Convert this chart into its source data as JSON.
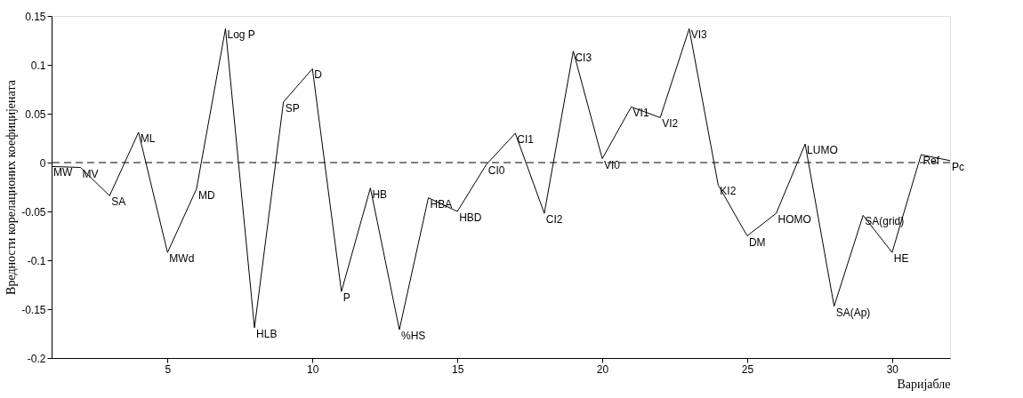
{
  "chart_data": {
    "type": "line",
    "xlabel": "Варијабле",
    "ylabel": "Вредности корелационих коефицијената",
    "x": [
      1,
      2,
      3,
      4,
      5,
      6,
      7,
      8,
      9,
      10,
      11,
      12,
      13,
      14,
      15,
      16,
      17,
      18,
      19,
      20,
      21,
      22,
      23,
      24,
      25,
      26,
      27,
      28,
      29,
      30,
      31,
      32
    ],
    "series": [
      {
        "color": "#000000",
        "values": [
          -0.004,
          -0.005,
          -0.034,
          0.031,
          -0.092,
          -0.027,
          0.137,
          -0.169,
          0.062,
          0.096,
          -0.132,
          -0.026,
          -0.171,
          -0.036,
          -0.05,
          -0.002,
          0.03,
          -0.052,
          0.114,
          0.004,
          0.057,
          0.046,
          0.137,
          -0.023,
          -0.075,
          -0.052,
          0.019,
          -0.147,
          -0.054,
          -0.092,
          0.008,
          0.002
        ]
      }
    ],
    "annotations": [
      {
        "text": "MW",
        "x": 1,
        "y": -0.004
      },
      {
        "text": "MV",
        "x": 2,
        "y": -0.005
      },
      {
        "text": "SA",
        "x": 3,
        "y": -0.034
      },
      {
        "text": "ML",
        "x": 4,
        "y": 0.031
      },
      {
        "text": "MWd",
        "x": 5,
        "y": -0.092
      },
      {
        "text": "MD",
        "x": 6,
        "y": -0.027
      },
      {
        "text": "Log P",
        "x": 7,
        "y": 0.137
      },
      {
        "text": "HLB",
        "x": 8,
        "y": -0.169
      },
      {
        "text": "SP",
        "x": 9,
        "y": 0.062
      },
      {
        "text": "D",
        "x": 10,
        "y": 0.096
      },
      {
        "text": "P",
        "x": 11,
        "y": -0.132
      },
      {
        "text": "HB",
        "x": 12,
        "y": -0.026
      },
      {
        "text": "%HS",
        "x": 13,
        "y": -0.171
      },
      {
        "text": "HBA",
        "x": 14,
        "y": -0.036
      },
      {
        "text": "HBD",
        "x": 15,
        "y": -0.05
      },
      {
        "text": "CI0",
        "x": 16,
        "y": -0.002
      },
      {
        "text": "CI1",
        "x": 17,
        "y": 0.03
      },
      {
        "text": "CI2",
        "x": 18,
        "y": -0.052
      },
      {
        "text": "CI3",
        "x": 19,
        "y": 0.114
      },
      {
        "text": "VI0",
        "x": 20,
        "y": 0.004
      },
      {
        "text": "VI1",
        "x": 21,
        "y": 0.057
      },
      {
        "text": "VI2",
        "x": 22,
        "y": 0.046
      },
      {
        "text": "VI3",
        "x": 23,
        "y": 0.137
      },
      {
        "text": "KI2",
        "x": 24,
        "y": -0.023
      },
      {
        "text": "DM",
        "x": 25,
        "y": -0.075
      },
      {
        "text": "HOMO",
        "x": 26,
        "y": -0.052
      },
      {
        "text": "LUMO",
        "x": 27,
        "y": 0.019
      },
      {
        "text": "SA(Ap)",
        "x": 28,
        "y": -0.147
      },
      {
        "text": "SA(grid)",
        "x": 29,
        "y": -0.054
      },
      {
        "text": "HE",
        "x": 30,
        "y": -0.092
      },
      {
        "text": "Ref",
        "x": 31,
        "y": 0.008
      },
      {
        "text": "Pc",
        "x": 32,
        "y": 0.002
      }
    ],
    "ref_lines": [
      {
        "axis": "y",
        "value": 0,
        "line_style": "dashed",
        "color": "#000000"
      }
    ],
    "xlim": [
      1,
      32
    ],
    "xticks": [
      5,
      10,
      15,
      20,
      25,
      30
    ],
    "ylim": [
      -0.2,
      0.15
    ],
    "yticks": [
      -0.2,
      -0.15,
      -0.1,
      -0.05,
      0,
      0.05,
      0.1,
      0.15
    ],
    "grid": false,
    "marker": "none",
    "line_style": "solid"
  }
}
